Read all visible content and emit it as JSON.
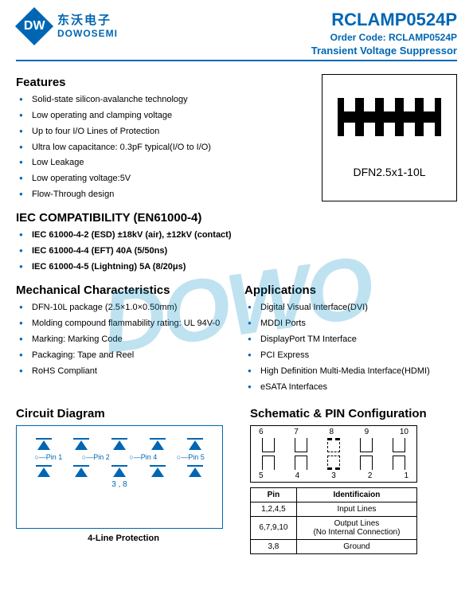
{
  "header": {
    "logo_letter": "DW",
    "logo_cn": "东沃电子",
    "logo_en": "DOWOSEMI",
    "part_number": "RCLAMP0524P",
    "order_code_label": "Order Code: ",
    "order_code": "RCLAMP0524P",
    "subtitle": "Transient Voltage Suppressor"
  },
  "features": {
    "heading": "Features",
    "items": [
      "Solid-state silicon-avalanche technology",
      "Low operating and clamping voltage",
      "Up to four I/O Lines of Protection",
      "Ultra low capacitance: 0.3pF typical(I/O to I/O)",
      "Low Leakage",
      "Low operating voltage:5V",
      "Flow-Through design"
    ]
  },
  "package": {
    "label": "DFN2.5x1-10L"
  },
  "iec": {
    "heading": "IEC COMPATIBILITY (EN61000-4)",
    "items": [
      "IEC 61000-4-2 (ESD) ±18kV (air), ±12kV (contact)",
      "IEC 61000-4-4 (EFT) 40A (5/50ns)",
      "IEC 61000-4-5 (Lightning) 5A (8/20μs)"
    ]
  },
  "mechanical": {
    "heading": "Mechanical Characteristics",
    "items": [
      "DFN-10L package (2.5×1.0×0.50mm)",
      "Molding compound flammability rating: UL 94V-0",
      "Marking: Marking Code",
      "Packaging: Tape and Reel",
      "RoHS Compliant"
    ]
  },
  "applications": {
    "heading": "Applications",
    "items": [
      "Digital Visual Interface(DVI)",
      "MDDI Ports",
      "DisplayPort TM Interface",
      "PCI Express",
      "High Definition Multi-Media Interface(HDMI)",
      "eSATA Interfaces"
    ]
  },
  "circuit": {
    "heading": "Circuit Diagram",
    "pins": [
      "Pin 1",
      "Pin 2",
      "Pin 4",
      "Pin 5"
    ],
    "ground": "3 , 8",
    "caption": "4-Line Protection"
  },
  "schematic": {
    "heading": "Schematic & PIN Configuration",
    "top_pins": [
      "6",
      "7",
      "8",
      "9",
      "10"
    ],
    "bot_pins": [
      "5",
      "4",
      "3",
      "2",
      "1"
    ],
    "table": {
      "headers": [
        "Pin",
        "Identificaion"
      ],
      "rows": [
        [
          "1,2,4,5",
          "Input Lines"
        ],
        [
          "6,7,9,10",
          "Output Lines\n(No Internal Connection)"
        ],
        [
          "3,8",
          "Ground"
        ]
      ]
    }
  },
  "watermark": "DOWO",
  "colors": {
    "brand": "#0066b3",
    "watermark": "rgba(0,140,200,0.25)"
  }
}
